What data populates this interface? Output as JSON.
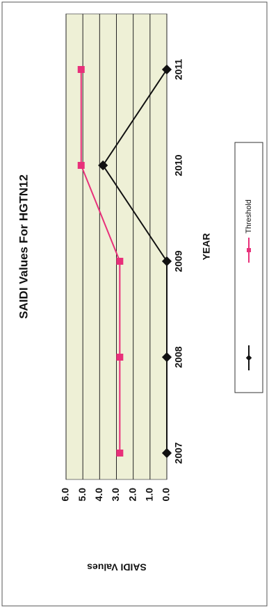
{
  "chart_data": {
    "type": "line",
    "title": "SAIDI Values For HGTN12",
    "x_label": "YEAR",
    "y_label": "SAIDI Values",
    "categories": [
      "2007",
      "2008",
      "2009",
      "2010",
      "2011"
    ],
    "series": [
      {
        "name": null,
        "color": "#111111",
        "values": [
          0,
          0,
          0,
          3.8,
          0
        ]
      },
      {
        "name": "Threshold",
        "color": "#e8307a",
        "values": [
          2.8,
          2.8,
          2.8,
          5.1,
          5.1
        ]
      }
    ],
    "ylim": [
      0,
      6
    ],
    "yticks": [
      {
        "value": 0,
        "label": "0.0"
      },
      {
        "value": 1,
        "label": "1.0"
      },
      {
        "value": 2,
        "label": "2.0"
      },
      {
        "value": 3,
        "label": "3.0"
      },
      {
        "value": 4,
        "label": "4.0"
      },
      {
        "value": 5,
        "label": "5.0"
      },
      {
        "value": 6,
        "label": "6.0"
      }
    ],
    "grid": true
  }
}
